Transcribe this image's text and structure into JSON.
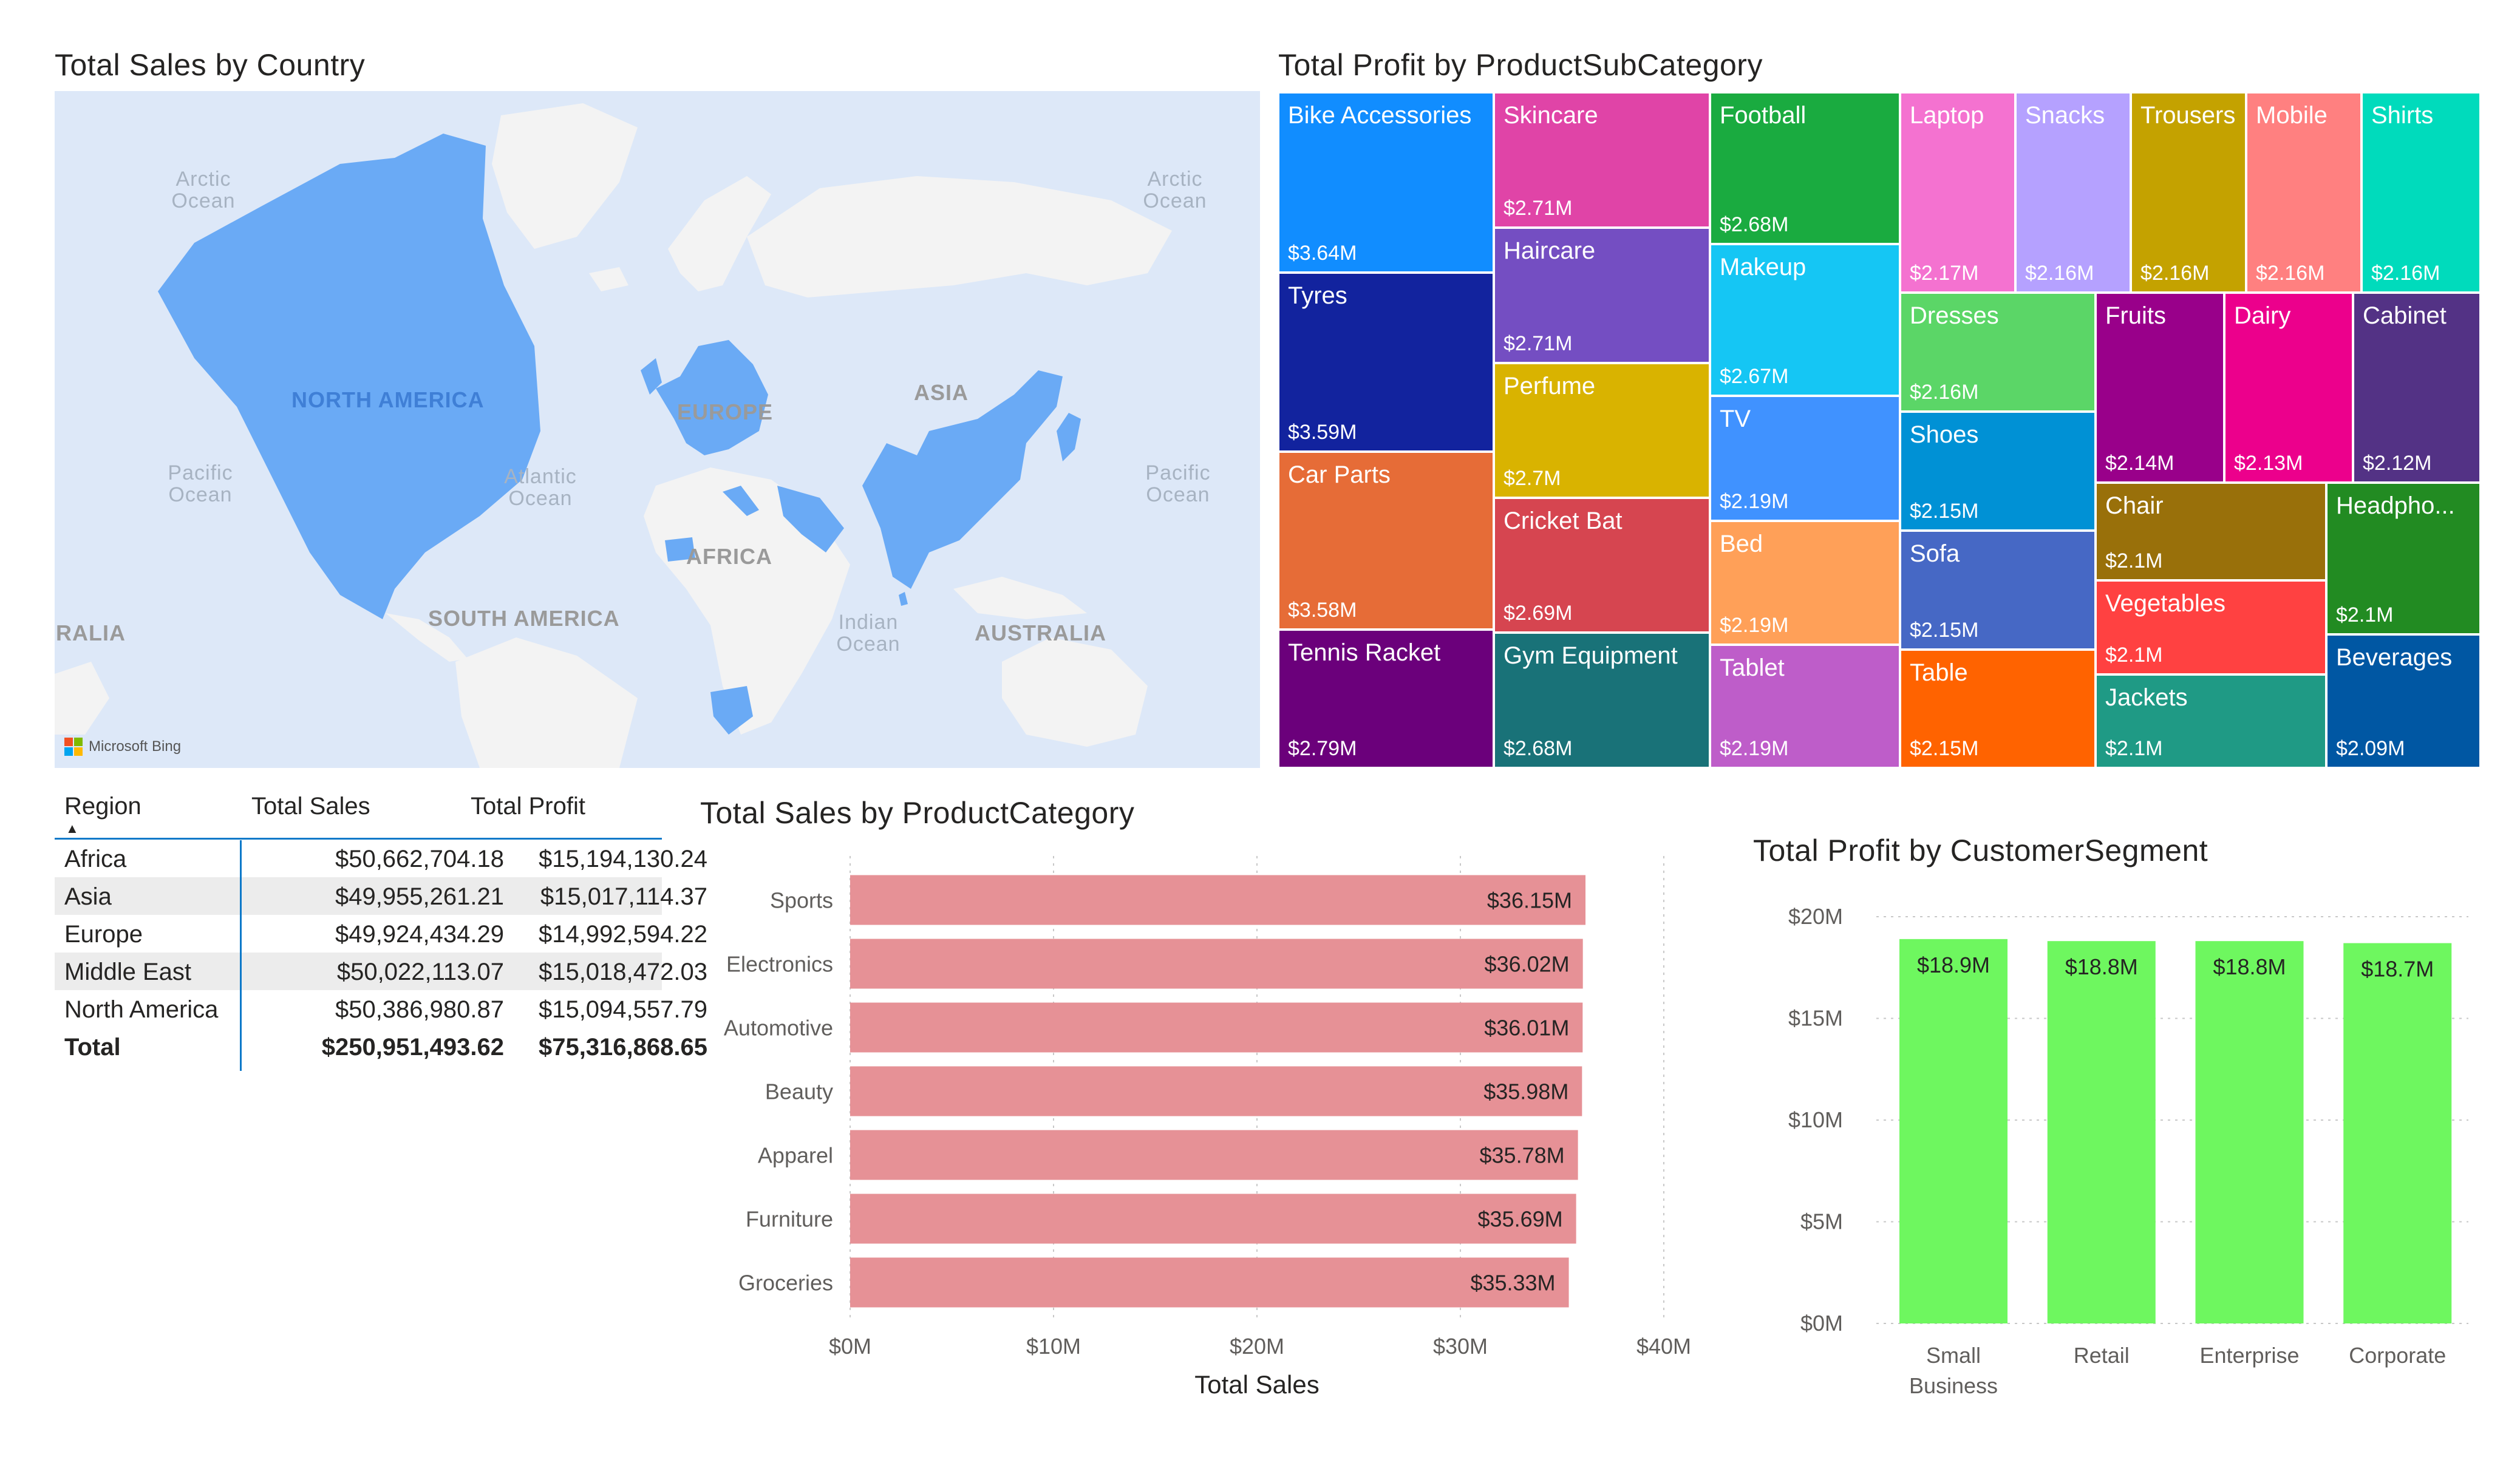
{
  "map": {
    "title": "Total Sales by Country",
    "continents": [
      "NORTH AMERICA",
      "EUROPE",
      "ASIA",
      "AFRICA",
      "SOUTH AMERICA",
      "AUSTRALIA",
      "RALIA"
    ],
    "oceans": [
      "Arctic Ocean",
      "Arctic Ocean",
      "Pacific Ocean",
      "Atlantic Ocean",
      "Pacific Ocean",
      "Indian Ocean"
    ],
    "attribution": "Microsoft Bing",
    "colors": {
      "water": "#dde8f8",
      "land": "#f3f3f3",
      "highlight": "#6aaaf5"
    },
    "highlighted_regions": [
      "Africa",
      "Asia",
      "Europe",
      "Middle East",
      "North America"
    ]
  },
  "treemap": {
    "title": "Total Profit by ProductSubCategory",
    "tiles": [
      {
        "name": "Bike Accessories",
        "value": "$3.64M",
        "color": "#118dff"
      },
      {
        "name": "Tyres",
        "value": "$3.59M",
        "color": "#12239e"
      },
      {
        "name": "Car Parts",
        "value": "$3.58M",
        "color": "#e66c37"
      },
      {
        "name": "Tennis Racket",
        "value": "$2.79M",
        "color": "#6b007b"
      },
      {
        "name": "Skincare",
        "value": "$2.71M",
        "color": "#e044a7"
      },
      {
        "name": "Haircare",
        "value": "$2.71M",
        "color": "#744ec2"
      },
      {
        "name": "Perfume",
        "value": "$2.7M",
        "color": "#d9b300"
      },
      {
        "name": "Cricket Bat",
        "value": "$2.69M",
        "color": "#d64550"
      },
      {
        "name": "Gym Equipment",
        "value": "$2.68M",
        "color": "#197278"
      },
      {
        "name": "Football",
        "value": "$2.68M",
        "color": "#1aab40"
      },
      {
        "name": "Makeup",
        "value": "$2.67M",
        "color": "#15c6f4"
      },
      {
        "name": "TV",
        "value": "$2.19M",
        "color": "#4092ff"
      },
      {
        "name": "Bed",
        "value": "$2.19M",
        "color": "#ffa058"
      },
      {
        "name": "Tablet",
        "value": "$2.19M",
        "color": "#be5dc9"
      },
      {
        "name": "Laptop",
        "value": "$2.17M",
        "color": "#f472d0"
      },
      {
        "name": "Snacks",
        "value": "$2.16M",
        "color": "#b5a1ff"
      },
      {
        "name": "Trousers",
        "value": "$2.16M",
        "color": "#c4a200"
      },
      {
        "name": "Mobile",
        "value": "$2.16M",
        "color": "#ff8080"
      },
      {
        "name": "Shirts",
        "value": "$2.16M",
        "color": "#00dbbc"
      },
      {
        "name": "Dresses",
        "value": "$2.16M",
        "color": "#5bd667"
      },
      {
        "name": "Shoes",
        "value": "$2.15M",
        "color": "#0091d5"
      },
      {
        "name": "Sofa",
        "value": "$2.15M",
        "color": "#4668c5"
      },
      {
        "name": "Table",
        "value": "$2.15M",
        "color": "#ff6300"
      },
      {
        "name": "Fruits",
        "value": "$2.14M",
        "color": "#99008a"
      },
      {
        "name": "Dairy",
        "value": "$2.13M",
        "color": "#ec008c"
      },
      {
        "name": "Cabinet",
        "value": "$2.12M",
        "color": "#533285"
      },
      {
        "name": "Chair",
        "value": "$2.1M",
        "color": "#99700a"
      },
      {
        "name": "Headpho...",
        "value": "$2.1M",
        "color": "#228b22"
      },
      {
        "name": "Vegetables",
        "value": "$2.1M",
        "color": "#ff4141"
      },
      {
        "name": "Jackets",
        "value": "$2.1M",
        "color": "#1f9a85"
      },
      {
        "name": "Beverages",
        "value": "$2.09M",
        "color": "#0057a3"
      }
    ]
  },
  "table": {
    "headers": [
      "Region",
      "Total Sales",
      "Total Profit"
    ],
    "rows": [
      [
        "Africa",
        "$50,662,704.18",
        "$15,194,130.24"
      ],
      [
        "Asia",
        "$49,955,261.21",
        "$15,017,114.37"
      ],
      [
        "Europe",
        "$49,924,434.29",
        "$14,992,594.22"
      ],
      [
        "Middle East",
        "$50,022,113.07",
        "$15,018,472.03"
      ],
      [
        "North America",
        "$50,386,980.87",
        "$15,094,557.79"
      ]
    ],
    "total": [
      "Total",
      "$250,951,493.62",
      "$75,316,868.65"
    ],
    "sort_indicator": "▲"
  },
  "chart_data": [
    {
      "type": "bar",
      "orientation": "horizontal",
      "title": "Total Sales by ProductCategory",
      "xlabel": "Total Sales",
      "ylabel": "",
      "categories": [
        "Sports",
        "Electronics",
        "Automotive",
        "Beauty",
        "Apparel",
        "Furniture",
        "Groceries"
      ],
      "values": [
        36.15,
        36.02,
        36.01,
        35.98,
        35.78,
        35.69,
        35.33
      ],
      "data_labels": [
        "$36.15M",
        "$36.02M",
        "$36.01M",
        "$35.98M",
        "$35.78M",
        "$35.69M",
        "$35.33M"
      ],
      "xlim": [
        0,
        40
      ],
      "ticks": [
        0,
        10,
        20,
        30,
        40
      ],
      "tick_labels": [
        "$0M",
        "$10M",
        "$20M",
        "$30M",
        "$40M"
      ],
      "grid": true,
      "color": "#e69196"
    },
    {
      "type": "bar",
      "orientation": "vertical",
      "title": "Total Profit by CustomerSegment",
      "xlabel": "",
      "ylabel": "",
      "categories": [
        "Small Business",
        "Retail",
        "Enterprise",
        "Corporate"
      ],
      "category_lines": [
        [
          "Small",
          "Business"
        ],
        [
          "Retail"
        ],
        [
          "Enterprise"
        ],
        [
          "Corporate"
        ]
      ],
      "values": [
        18.9,
        18.8,
        18.8,
        18.7
      ],
      "data_labels": [
        "$18.9M",
        "$18.8M",
        "$18.8M",
        "$18.7M"
      ],
      "ylim": [
        0,
        20
      ],
      "ticks": [
        0,
        5,
        10,
        15,
        20
      ],
      "tick_labels": [
        "$0M",
        "$5M",
        "$10M",
        "$15M",
        "$20M"
      ],
      "grid": true,
      "color": "#6ef75f"
    }
  ]
}
